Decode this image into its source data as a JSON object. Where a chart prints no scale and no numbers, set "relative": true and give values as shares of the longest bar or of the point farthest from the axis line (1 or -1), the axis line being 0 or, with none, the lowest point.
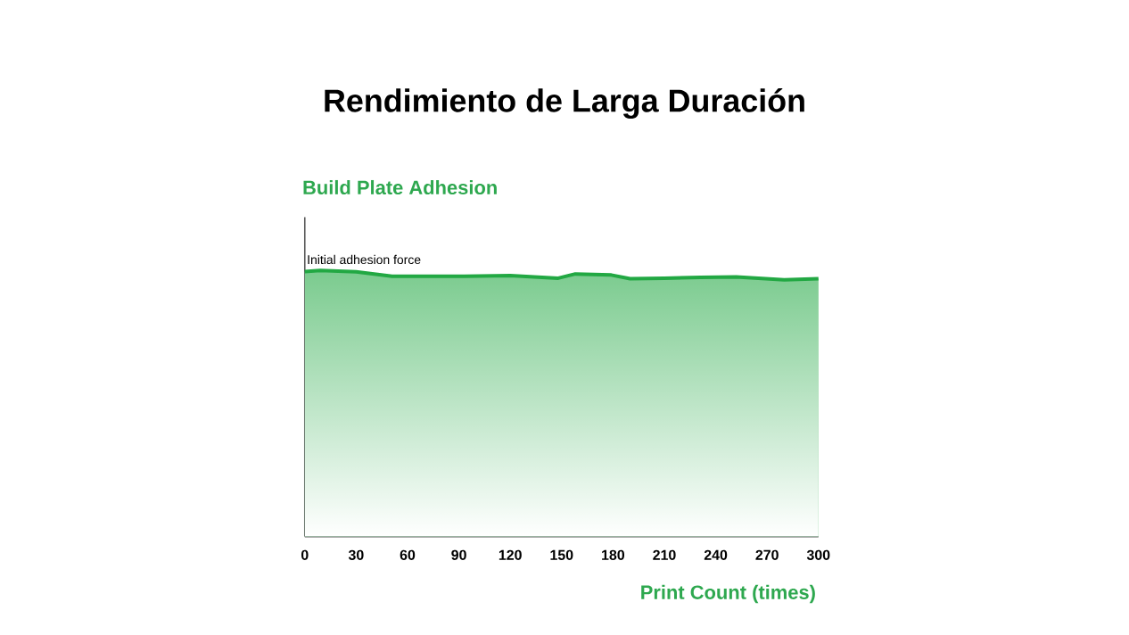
{
  "chart_data": {
    "type": "area",
    "title": "Rendimiento de Larga Duración",
    "ylabel": "Build Plate Adhesion",
    "xlabel": "Print Count (times)",
    "relative": true,
    "x": [
      0,
      9,
      30,
      51,
      93,
      120,
      148,
      158,
      179,
      190,
      210,
      231,
      252,
      280,
      300
    ],
    "series": [
      {
        "color": "#22a843",
        "values": [
          0.996,
          1,
          0.995,
          0.978,
          0.978,
          0.981,
          0.971,
          0.987,
          0.983,
          0.969,
          0.971,
          0.974,
          0.976,
          0.965,
          0.969
        ]
      }
    ],
    "xlim": [
      0,
      300
    ],
    "xticks": [
      0,
      30,
      60,
      90,
      120,
      150,
      180,
      210,
      240,
      270,
      300
    ],
    "annotations": [
      {
        "text": "Initial adhesion force",
        "x": 0,
        "y": 0.996
      }
    ]
  }
}
